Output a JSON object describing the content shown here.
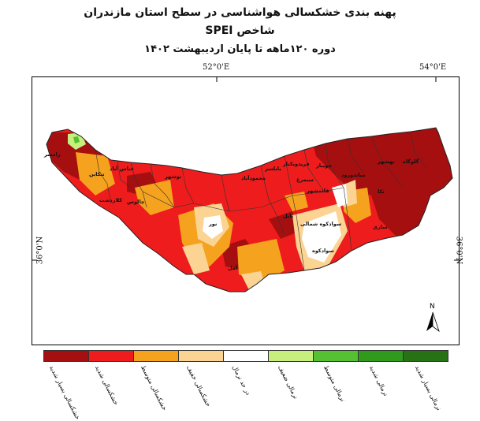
{
  "titles": {
    "line1": "پهنه بندی خشکسالی هواشناسی در سطح استان مازندران",
    "line2": "شاخص SPEI",
    "line3": "دوره ۱۲۰ماهه تا پایان اردیبهشت ۱۴۰۲"
  },
  "coords": {
    "top_left": "52°0'E",
    "top_right": "54°0'E",
    "left_lat": "36°0'N",
    "right_lat": "36°0'N"
  },
  "north_arrow": "N",
  "legend": [
    {
      "label": "خشکسالی بسیار شدید",
      "color": "#a50f0f"
    },
    {
      "label": "خشکسالی شدید",
      "color": "#ee1c1c"
    },
    {
      "label": "خشکسالی متوسط",
      "color": "#f5a21e"
    },
    {
      "label": "خشکسالی خفیف",
      "color": "#fbd393"
    },
    {
      "label": "در حد نرمال",
      "color": "#ffffff"
    },
    {
      "label": "نرمالی ضعیف",
      "color": "#c6ef7e"
    },
    {
      "label": "نرمالی متوسط",
      "color": "#54c032"
    },
    {
      "label": "نرمالی شدید",
      "color": "#2f9a1c"
    },
    {
      "label": "نرمالی بسیار شدید",
      "color": "#267214"
    }
  ],
  "places": [
    {
      "name": "رامسر"
    },
    {
      "name": "تنکابن"
    },
    {
      "name": "عباس آباد"
    },
    {
      "name": "کلاردشت"
    },
    {
      "name": "چالوس"
    },
    {
      "name": "نوشهر"
    },
    {
      "name": "نور"
    },
    {
      "name": "آمل"
    },
    {
      "name": "محمودآباد"
    },
    {
      "name": "بابلسر"
    },
    {
      "name": "فریدونکنار"
    },
    {
      "name": "جویبار"
    },
    {
      "name": "بابل"
    },
    {
      "name": "قائمشهر"
    },
    {
      "name": "سیمرغ"
    },
    {
      "name": "ساری"
    },
    {
      "name": "سوادکوه شمالی"
    },
    {
      "name": "سوادکوه"
    },
    {
      "name": "میاندورود"
    },
    {
      "name": "نکا"
    },
    {
      "name": "بهشهر"
    },
    {
      "name": "گلوگاه"
    }
  ]
}
